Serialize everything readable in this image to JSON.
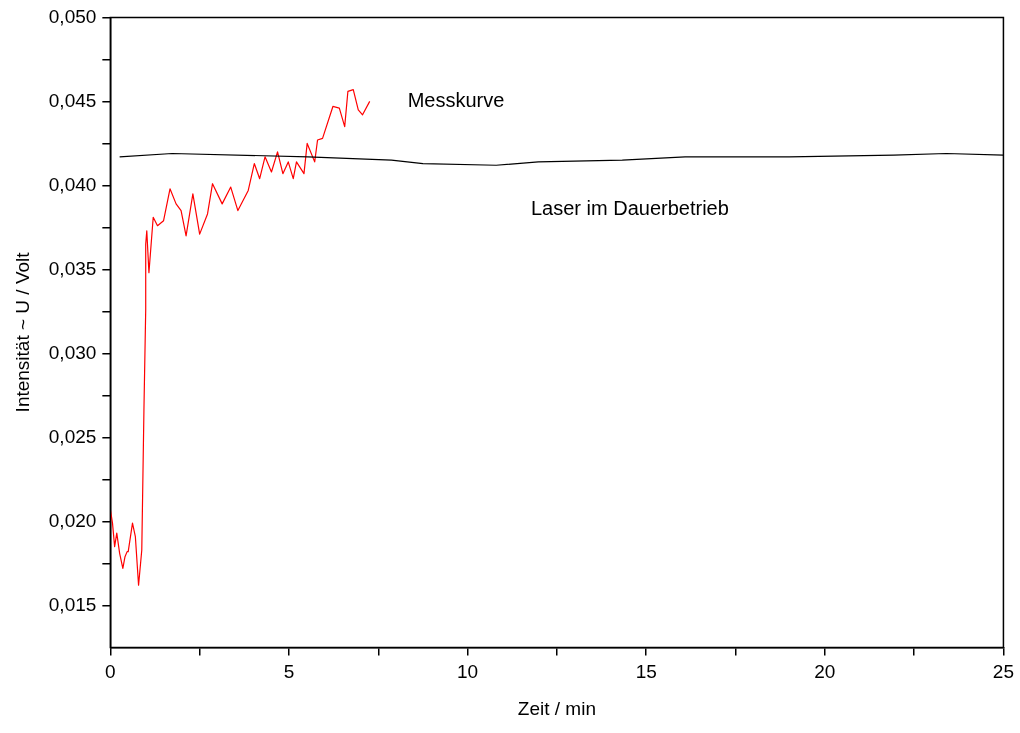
{
  "chart_data": {
    "type": "line",
    "xlabel": "Zeit / min",
    "ylabel": "Intensität ~ U / Volt",
    "xlim": [
      0,
      25
    ],
    "ylim": [
      0.0125,
      0.05
    ],
    "xticks": [
      0,
      {
        "value": 2.5,
        "label": null
      },
      5,
      {
        "value": 7.5,
        "label": null
      },
      10,
      {
        "value": 12.5,
        "label": null
      },
      15,
      {
        "value": 17.5,
        "label": null
      },
      20,
      {
        "value": 22.5,
        "label": null
      },
      25
    ],
    "yticks": [
      {
        "value": 0.015,
        "label": "0,015"
      },
      {
        "value": 0.0175,
        "label": null
      },
      {
        "value": 0.02,
        "label": "0,020"
      },
      {
        "value": 0.0225,
        "label": null
      },
      {
        "value": 0.025,
        "label": "0,025"
      },
      {
        "value": 0.0275,
        "label": null
      },
      {
        "value": 0.03,
        "label": "0,030"
      },
      {
        "value": 0.0325,
        "label": null
      },
      {
        "value": 0.035,
        "label": "0,035"
      },
      {
        "value": 0.0375,
        "label": null
      },
      {
        "value": 0.04,
        "label": "0,040"
      },
      {
        "value": 0.0425,
        "label": null
      },
      {
        "value": 0.045,
        "label": "0,045"
      },
      {
        "value": 0.0475,
        "label": null
      },
      {
        "value": 0.05,
        "label": "0,050"
      }
    ],
    "grid": false,
    "legend": false,
    "marker": "none",
    "line_style": "solid",
    "series": [
      {
        "name": "Laser im Dauerbetrieb",
        "color": "#000000",
        "x": [
          0.26,
          1.73,
          5.53,
          7.87,
          8.75,
          10.8,
          11.98,
          14.33,
          16.09,
          19.0,
          21.93,
          23.4,
          25.0
        ],
        "values": [
          0.0417,
          0.0419,
          0.0417,
          0.0415,
          0.0413,
          0.0412,
          0.0414,
          0.0415,
          0.0417,
          0.0417,
          0.0418,
          0.0419,
          0.0418
        ]
      },
      {
        "name": "Messkurve",
        "color": "#ff0000",
        "x": [
          0.0,
          0.06,
          0.12,
          0.18,
          0.26,
          0.35,
          0.41,
          0.47,
          0.5,
          0.62,
          0.7,
          0.79,
          0.88,
          0.94,
          0.99,
          0.99,
          1.02,
          1.08,
          1.2,
          1.32,
          1.49,
          1.67,
          1.84,
          1.98,
          2.12,
          2.31,
          2.5,
          2.72,
          2.86,
          3.13,
          3.37,
          3.57,
          3.86,
          4.03,
          4.18,
          4.33,
          4.51,
          4.68,
          4.83,
          4.98,
          5.12,
          5.21,
          5.42,
          5.51,
          5.72,
          5.8,
          5.94,
          6.23,
          6.41,
          6.56,
          6.65,
          6.8,
          6.94,
          7.06,
          7.26
        ],
        "values": [
          0.0207,
          0.0199,
          0.0185,
          0.0193,
          0.0181,
          0.0172,
          0.0179,
          0.0182,
          0.0182,
          0.0199,
          0.0191,
          0.0162,
          0.0183,
          0.0266,
          0.0326,
          0.0365,
          0.0373,
          0.0348,
          0.0381,
          0.0376,
          0.0379,
          0.0398,
          0.0389,
          0.0385,
          0.037,
          0.0395,
          0.0371,
          0.0383,
          0.0401,
          0.0389,
          0.0399,
          0.0385,
          0.0397,
          0.0413,
          0.0404,
          0.0417,
          0.0408,
          0.042,
          0.0407,
          0.0414,
          0.0404,
          0.0414,
          0.0407,
          0.0425,
          0.0414,
          0.0427,
          0.0428,
          0.0447,
          0.0446,
          0.0435,
          0.0456,
          0.0457,
          0.0445,
          0.0442,
          0.045
        ]
      }
    ]
  }
}
